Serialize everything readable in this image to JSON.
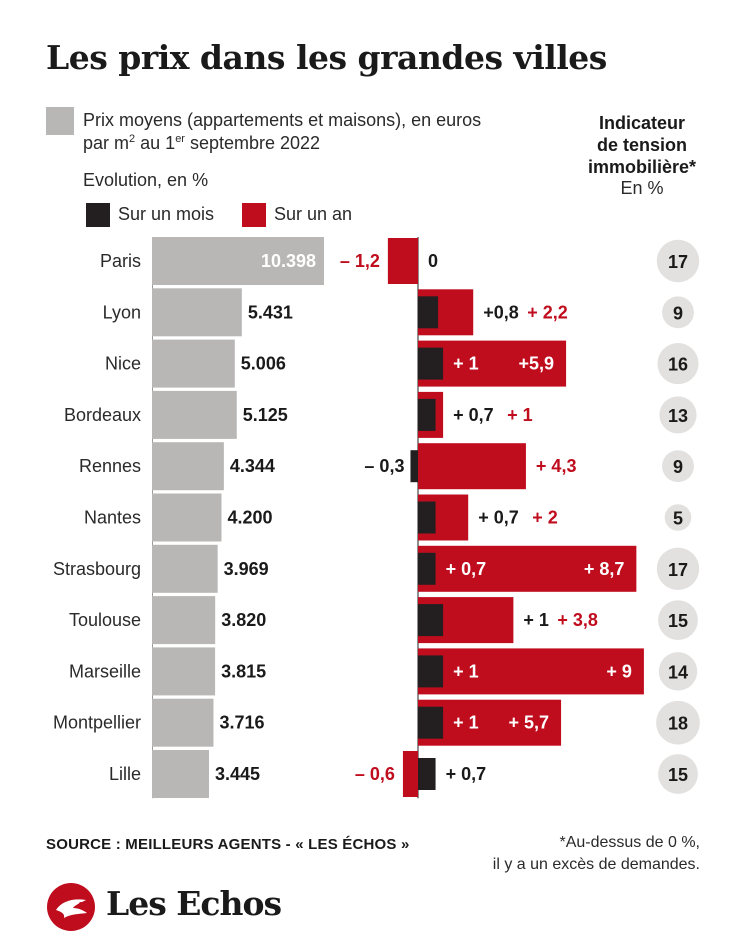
{
  "header": {
    "title": "Les prix dans les grandes villes",
    "legend_price_line1": "Prix moyens (appartements et maisons), en euros",
    "legend_price_line2_a": "par m",
    "legend_price_sup1": "2",
    "legend_price_line2_b": " au 1",
    "legend_price_sup2": "er",
    "legend_price_line2_c": " septembre 2022",
    "evolution_label": "Evolution, en %",
    "legend_month": "Sur un mois",
    "legend_year": "Sur un an",
    "tension_title_1": "Indicateur",
    "tension_title_2": "de tension",
    "tension_title_3": "immobilière*",
    "tension_unit": "En %"
  },
  "footer": {
    "source": "SOURCE : MEILLEURS AGENTS - « LES ÉCHOS »",
    "footnote_1": "*Au-dessus de 0 %,",
    "footnote_2": "il y a un excès de demandes.",
    "brand": "Les Echos"
  },
  "colors": {
    "price": "#b8b7b6",
    "month": "#231f20",
    "year": "#c00d1e",
    "tension_circle": "#e2e1e0"
  },
  "chart_data": {
    "type": "bar",
    "categories": [
      "Paris",
      "Lyon",
      "Nice",
      "Bordeaux",
      "Rennes",
      "Nantes",
      "Strasbourg",
      "Toulouse",
      "Marseille",
      "Montpellier",
      "Lille"
    ],
    "series": [
      {
        "values": [
          10398,
          5431,
          5006,
          5125,
          4344,
          4200,
          3969,
          3820,
          3815,
          3716,
          3445
        ],
        "labels": [
          "10.398",
          "5.431",
          "5.006",
          "5.125",
          "4.344",
          "4.200",
          "3.969",
          "3.820",
          "3.815",
          "3.716",
          "3.445"
        ]
      },
      {
        "name": "Sur un mois",
        "values": [
          0,
          0.8,
          1,
          0.7,
          -0.3,
          0.7,
          0.7,
          1,
          1,
          1,
          0.7
        ],
        "labels": [
          "0",
          "+0,8",
          "+ 1",
          "+ 0,7",
          "– 0,3",
          "+ 0,7",
          "+ 0,7",
          "+ 1",
          "+ 1",
          "+ 1",
          "+ 0,7"
        ]
      },
      {
        "name": "Sur un an",
        "values": [
          -1.2,
          2.2,
          5.9,
          1,
          4.3,
          2,
          8.7,
          3.8,
          9,
          5.7,
          -0.6
        ],
        "labels": [
          "– 1,2",
          "+ 2,2",
          "+5,9",
          "+ 1",
          "+ 4,3",
          "+ 2",
          "+ 8,7",
          "+ 3,8",
          "+ 9",
          "+ 5,7",
          "– 0,6"
        ]
      },
      {
        "values": [
          17,
          9,
          16,
          13,
          9,
          5,
          17,
          15,
          14,
          18,
          15
        ],
        "labels": [
          "17",
          "9",
          "16",
          "13",
          "9",
          "5",
          "17",
          "15",
          "14",
          "18",
          "15"
        ]
      }
    ]
  }
}
